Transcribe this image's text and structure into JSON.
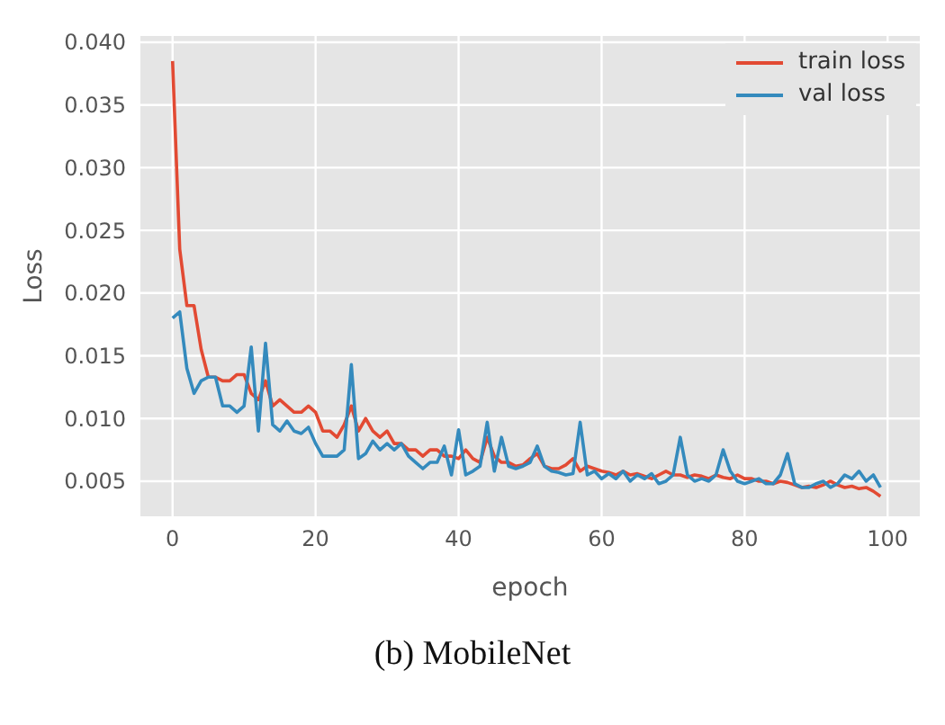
{
  "chart_data": {
    "type": "line",
    "xlabel": "epoch",
    "ylabel": "Loss",
    "annotations": [
      "(b) MobileNet"
    ],
    "x": [
      0,
      1,
      2,
      3,
      4,
      5,
      6,
      7,
      8,
      9,
      10,
      11,
      12,
      13,
      14,
      15,
      16,
      17,
      18,
      19,
      20,
      21,
      22,
      23,
      24,
      25,
      26,
      27,
      28,
      29,
      30,
      31,
      32,
      33,
      34,
      35,
      36,
      37,
      38,
      39,
      40,
      41,
      42,
      43,
      44,
      45,
      46,
      47,
      48,
      49,
      50,
      51,
      52,
      53,
      54,
      55,
      56,
      57,
      58,
      59,
      60,
      61,
      62,
      63,
      64,
      65,
      66,
      67,
      68,
      69,
      70,
      71,
      72,
      73,
      74,
      75,
      76,
      77,
      78,
      79,
      80,
      81,
      82,
      83,
      84,
      85,
      86,
      87,
      88,
      89,
      90,
      91,
      92,
      93,
      94,
      95,
      96,
      97,
      98,
      99
    ],
    "series": [
      {
        "name": "train loss",
        "color": "#e24a33",
        "values": [
          0.0385,
          0.0235,
          0.019,
          0.019,
          0.0155,
          0.0133,
          0.0133,
          0.013,
          0.013,
          0.0135,
          0.0135,
          0.012,
          0.0115,
          0.013,
          0.011,
          0.0115,
          0.011,
          0.0105,
          0.0105,
          0.011,
          0.0105,
          0.009,
          0.009,
          0.0085,
          0.0095,
          0.011,
          0.009,
          0.01,
          0.009,
          0.0085,
          0.009,
          0.008,
          0.008,
          0.0075,
          0.0075,
          0.007,
          0.0075,
          0.0075,
          0.007,
          0.007,
          0.0068,
          0.0075,
          0.0068,
          0.0065,
          0.0085,
          0.007,
          0.0065,
          0.0065,
          0.0062,
          0.0063,
          0.0068,
          0.0072,
          0.0062,
          0.006,
          0.006,
          0.0063,
          0.0068,
          0.0058,
          0.0062,
          0.006,
          0.0058,
          0.0057,
          0.0055,
          0.0058,
          0.0055,
          0.0056,
          0.0054,
          0.0052,
          0.0055,
          0.0058,
          0.0055,
          0.0055,
          0.0053,
          0.0055,
          0.0054,
          0.0052,
          0.0055,
          0.0053,
          0.0052,
          0.0055,
          0.0052,
          0.0052,
          0.005,
          0.005,
          0.0048,
          0.005,
          0.0049,
          0.0047,
          0.0045,
          0.0046,
          0.0045,
          0.0047,
          0.005,
          0.0047,
          0.0045,
          0.0046,
          0.0044,
          0.0045,
          0.0042,
          0.0038
        ]
      },
      {
        "name": "val loss",
        "color": "#348abd",
        "values": [
          0.018,
          0.0185,
          0.014,
          0.012,
          0.013,
          0.0133,
          0.0133,
          0.011,
          0.011,
          0.0105,
          0.011,
          0.0157,
          0.009,
          0.016,
          0.0095,
          0.009,
          0.0098,
          0.009,
          0.0088,
          0.0093,
          0.008,
          0.007,
          0.007,
          0.007,
          0.0075,
          0.0143,
          0.0068,
          0.0072,
          0.0082,
          0.0075,
          0.008,
          0.0075,
          0.008,
          0.007,
          0.0065,
          0.006,
          0.0065,
          0.0065,
          0.0078,
          0.0055,
          0.0091,
          0.0055,
          0.0058,
          0.0062,
          0.0097,
          0.0058,
          0.0085,
          0.0062,
          0.006,
          0.0062,
          0.0065,
          0.0078,
          0.0062,
          0.0058,
          0.0057,
          0.0055,
          0.0056,
          0.0097,
          0.0055,
          0.0058,
          0.0052,
          0.0056,
          0.0052,
          0.0058,
          0.005,
          0.0055,
          0.0052,
          0.0056,
          0.0048,
          0.005,
          0.0055,
          0.0085,
          0.0055,
          0.005,
          0.0052,
          0.005,
          0.0055,
          0.0075,
          0.0058,
          0.005,
          0.0048,
          0.005,
          0.0052,
          0.0048,
          0.0048,
          0.0055,
          0.0072,
          0.0048,
          0.0045,
          0.0045,
          0.0048,
          0.005,
          0.0045,
          0.0048,
          0.0055,
          0.0052,
          0.0058,
          0.005,
          0.0055,
          0.0045
        ]
      }
    ],
    "xlim": [
      -4.5,
      104.5
    ],
    "xticks": [
      0,
      20,
      40,
      60,
      80,
      100
    ],
    "ylim": [
      0.0022,
      0.0405
    ],
    "yticks": [
      {
        "value": 0.005,
        "label": "0.005"
      },
      {
        "value": 0.01,
        "label": "0.010"
      },
      {
        "value": 0.015,
        "label": "0.015"
      },
      {
        "value": 0.02,
        "label": "0.020"
      },
      {
        "value": 0.025,
        "label": "0.025"
      },
      {
        "value": 0.03,
        "label": "0.030"
      },
      {
        "value": 0.035,
        "label": "0.035"
      },
      {
        "value": 0.04,
        "label": "0.040"
      }
    ],
    "grid": true,
    "legend": "top right",
    "marker": "none",
    "line_style": "solid"
  }
}
